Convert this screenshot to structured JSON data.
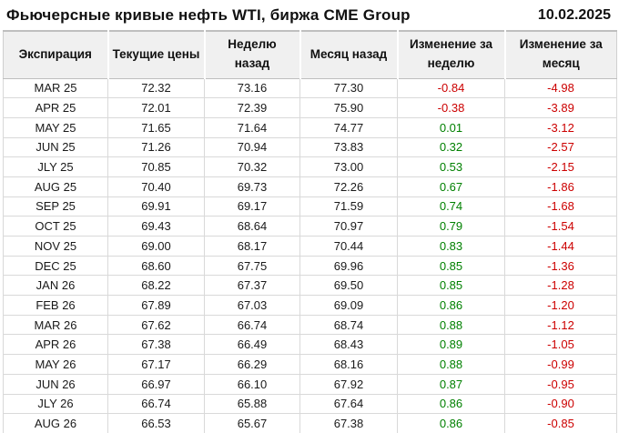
{
  "header": {
    "title": "Фьючерсные кривые нефть WTI, биржа CME Group",
    "date": "10.02.2025"
  },
  "colors": {
    "positive": "#008000",
    "negative": "#cc0000",
    "header_bg": "#f0f0f0",
    "grid_line": "#d9d9d9",
    "header_border": "#bfbfbf",
    "text": "#1a1a1a"
  },
  "chart_data": {
    "type": "table",
    "title": "Фьючерсные кривые нефть WTI, биржа CME Group",
    "date": "10.02.2025",
    "columns": [
      "Экспирация",
      "Текущие цены",
      "Неделю назад",
      "Месяц назад",
      "Изменение за неделю",
      "Изменение за месяц"
    ],
    "change_column_indexes": [
      4,
      5
    ],
    "rows": [
      [
        "MAR 25",
        "72.32",
        "73.16",
        "77.30",
        "-0.84",
        "-4.98"
      ],
      [
        "APR 25",
        "72.01",
        "72.39",
        "75.90",
        "-0.38",
        "-3.89"
      ],
      [
        "MAY 25",
        "71.65",
        "71.64",
        "74.77",
        "0.01",
        "-3.12"
      ],
      [
        "JUN 25",
        "71.26",
        "70.94",
        "73.83",
        "0.32",
        "-2.57"
      ],
      [
        "JLY 25",
        "70.85",
        "70.32",
        "73.00",
        "0.53",
        "-2.15"
      ],
      [
        "AUG 25",
        "70.40",
        "69.73",
        "72.26",
        "0.67",
        "-1.86"
      ],
      [
        "SEP 25",
        "69.91",
        "69.17",
        "71.59",
        "0.74",
        "-1.68"
      ],
      [
        "OCT 25",
        "69.43",
        "68.64",
        "70.97",
        "0.79",
        "-1.54"
      ],
      [
        "NOV 25",
        "69.00",
        "68.17",
        "70.44",
        "0.83",
        "-1.44"
      ],
      [
        "DEC 25",
        "68.60",
        "67.75",
        "69.96",
        "0.85",
        "-1.36"
      ],
      [
        "JAN 26",
        "68.22",
        "67.37",
        "69.50",
        "0.85",
        "-1.28"
      ],
      [
        "FEB 26",
        "67.89",
        "67.03",
        "69.09",
        "0.86",
        "-1.20"
      ],
      [
        "MAR 26",
        "67.62",
        "66.74",
        "68.74",
        "0.88",
        "-1.12"
      ],
      [
        "APR 26",
        "67.38",
        "66.49",
        "68.43",
        "0.89",
        "-1.05"
      ],
      [
        "MAY 26",
        "67.17",
        "66.29",
        "68.16",
        "0.88",
        "-0.99"
      ],
      [
        "JUN 26",
        "66.97",
        "66.10",
        "67.92",
        "0.87",
        "-0.95"
      ],
      [
        "JLY 26",
        "66.74",
        "65.88",
        "67.64",
        "0.86",
        "-0.90"
      ],
      [
        "AUG 26",
        "66.53",
        "65.67",
        "67.38",
        "0.86",
        "-0.85"
      ]
    ]
  }
}
